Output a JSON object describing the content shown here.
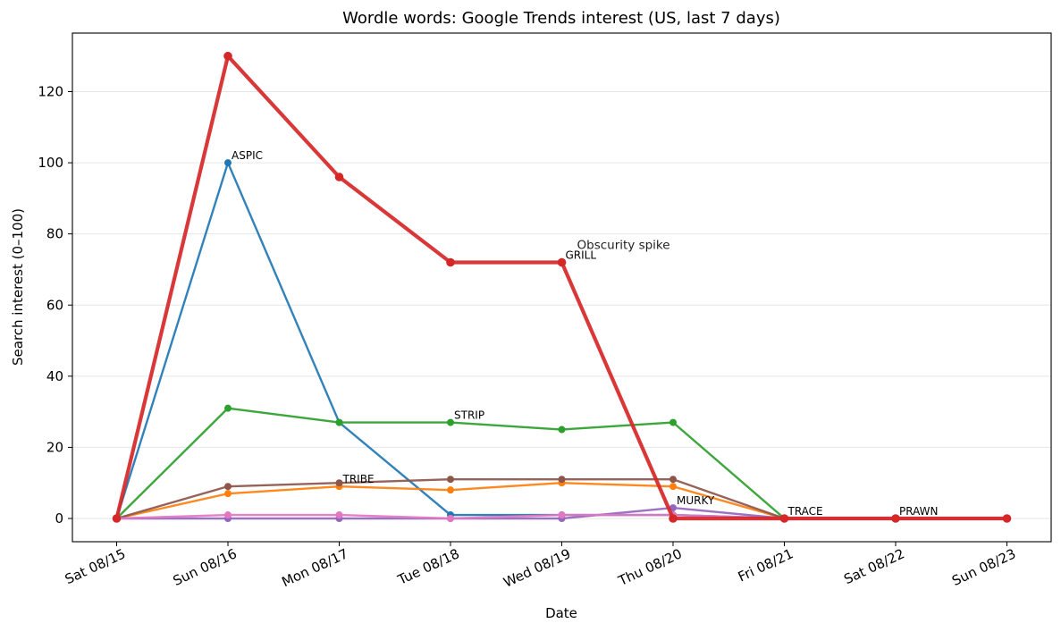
{
  "chart_data": {
    "type": "line",
    "title": "Wordle words: Google Trends interest (US, last 7 days)",
    "xlabel": "Date",
    "ylabel": "Search interest (0–100)",
    "categories": [
      "Sat 08/15",
      "Sun 08/16",
      "Mon 08/17",
      "Tue 08/18",
      "Wed 08/19",
      "Thu 08/20",
      "Fri 08/21",
      "Sat 08/22",
      "Sun 08/23"
    ],
    "y_ticks": [
      0,
      20,
      40,
      60,
      80,
      100,
      120
    ],
    "ylim": [
      -6,
      136
    ],
    "grid": "horizontal",
    "series": [
      {
        "label": "ASPIC",
        "label_at": "Sun 08/16",
        "color": "#1f77b4",
        "highlight": false,
        "values": [
          0,
          100,
          27,
          1,
          1,
          1,
          0,
          0,
          0
        ]
      },
      {
        "label": "TRIBE",
        "label_at": "Mon 08/17",
        "color": "#ff7f0e",
        "highlight": false,
        "values": [
          0,
          7,
          9,
          8,
          10,
          9,
          0,
          0,
          0
        ]
      },
      {
        "label": "STRIP",
        "label_at": "Tue 08/18",
        "color": "#2ca02c",
        "highlight": false,
        "values": [
          0,
          31,
          27,
          27,
          25,
          27,
          0,
          0,
          0
        ]
      },
      {
        "label": "TRACE",
        "label_at": "Fri 08/21",
        "color": "#8c564b",
        "highlight": false,
        "values": [
          0,
          9,
          10,
          11,
          11,
          11,
          0,
          0,
          0
        ]
      },
      {
        "label": "MURKY",
        "label_at": "Thu 08/20",
        "color": "#9467bd",
        "highlight": false,
        "values": [
          0,
          0,
          0,
          0,
          0,
          3,
          0,
          0,
          0
        ]
      },
      {
        "label": "PRAWN",
        "label_at": "Sat 08/22",
        "color": "#e377c2",
        "highlight": false,
        "values": [
          0,
          1,
          1,
          0,
          1,
          1,
          0,
          0,
          0
        ]
      },
      {
        "label": "GRILL",
        "label_at": "Wed 08/19",
        "color": "#d62728",
        "highlight": true,
        "values": [
          0,
          130,
          96,
          72,
          72,
          0,
          0,
          0,
          0
        ]
      }
    ],
    "annotations": [
      {
        "text": "Obscurity spike",
        "x": "Wed 08/19",
        "y": 76
      }
    ]
  }
}
